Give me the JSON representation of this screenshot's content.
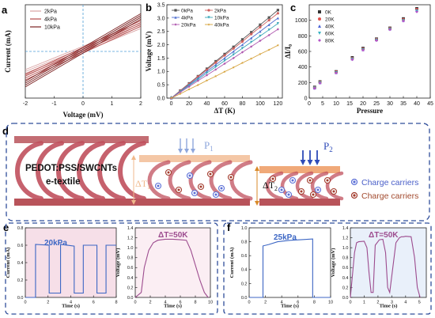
{
  "panels": {
    "a": {
      "letter": "a"
    },
    "b": {
      "letter": "b"
    },
    "c": {
      "letter": "c"
    },
    "d": {
      "letter": "d"
    },
    "e": {
      "letter": "e"
    },
    "f": {
      "letter": "f"
    }
  },
  "diagram_d": {
    "material_label_line1": "PEDOT:PSS/SWCNTs",
    "material_label_line2": "e-textile",
    "pressure1": "P",
    "pressure1_sub": "1",
    "pressure2": "P",
    "pressure2_sub": "2",
    "delta_t1": "ΔT",
    "delta_t1_sub": "1",
    "delta_t2": "ΔT",
    "delta_t2_sub": "2",
    "legend_charge_carriers_blue": "Charge carriers",
    "legend_charge_carriers_red": "Charge carriers",
    "colors": {
      "blue_carrier": "#5b6fd6",
      "red_carrier": "#a23b2c",
      "arch": "#c0505d",
      "plate_bottom": "#b8535a",
      "plate_top_light": "#f4c7a6",
      "arrow_light": "#8ea6dc",
      "arrow_dark": "#2e4bb8"
    }
  },
  "chart_data": [
    {
      "panel": "a",
      "type": "line",
      "xlabel": "Voltage (mV)",
      "ylabel": "Current (mA)",
      "xlim": [
        -2,
        2
      ],
      "xticks": [
        "-2",
        "-1",
        "0",
        "1",
        "2"
      ],
      "yticks": [],
      "series": [
        {
          "name": "2kPa",
          "color": "#d9a2a2",
          "x": [
            -2,
            2
          ],
          "y": [
            -0.45,
            0.55
          ]
        },
        {
          "name": "4kPa",
          "color": "#b44a4a",
          "x": [
            -2,
            2
          ],
          "y": [
            -0.55,
            0.6
          ]
        },
        {
          "name": "10kPa",
          "color": "#7a2020",
          "x": [
            -2,
            2
          ],
          "y": [
            -0.7,
            0.75
          ]
        }
      ]
    },
    {
      "panel": "b",
      "type": "line",
      "xlabel": "ΔT (K)",
      "ylabel": "Voltage (mV)",
      "xlim": [
        -5,
        125
      ],
      "ylim": [
        0,
        3.5
      ],
      "xticks": [
        0,
        20,
        40,
        60,
        80,
        100,
        120
      ],
      "yticks": [
        "0.0",
        "0.5",
        "1.0",
        "1.5",
        "2.0",
        "2.5",
        "3.0",
        "3.5"
      ],
      "x": [
        0,
        10,
        20,
        30,
        40,
        50,
        60,
        70,
        80,
        90,
        100,
        110,
        120
      ],
      "series": [
        {
          "name": "0kPa",
          "color": "#555555",
          "marker": "square",
          "y": [
            0,
            0.28,
            0.55,
            0.82,
            1.1,
            1.38,
            1.65,
            1.92,
            2.2,
            2.47,
            2.75,
            3.02,
            3.3
          ]
        },
        {
          "name": "2kPa",
          "color": "#d0605e",
          "marker": "circle",
          "y": [
            0,
            0.27,
            0.53,
            0.8,
            1.06,
            1.33,
            1.6,
            1.86,
            2.12,
            2.4,
            2.66,
            2.92,
            3.18
          ]
        },
        {
          "name": "4kPa",
          "color": "#4f6fd0",
          "marker": "triangle",
          "y": [
            0,
            0.25,
            0.5,
            0.75,
            1.0,
            1.25,
            1.5,
            1.75,
            2.0,
            2.25,
            2.5,
            2.75,
            3.0
          ]
        },
        {
          "name": "10kPa",
          "color": "#3aa6b8",
          "marker": "triangle-down",
          "y": [
            0,
            0.24,
            0.47,
            0.7,
            0.94,
            1.17,
            1.4,
            1.63,
            1.87,
            2.1,
            2.33,
            2.56,
            2.8
          ]
        },
        {
          "name": "20kPa",
          "color": "#b05ab0",
          "marker": "diamond",
          "y": [
            0,
            0.22,
            0.43,
            0.65,
            0.86,
            1.07,
            1.29,
            1.5,
            1.72,
            1.93,
            2.15,
            2.36,
            2.58
          ]
        },
        {
          "name": "40kPa",
          "color": "#d6a23a",
          "marker": "star",
          "y": [
            0,
            0.16,
            0.33,
            0.49,
            0.66,
            0.82,
            0.99,
            1.15,
            1.32,
            1.48,
            1.65,
            1.81,
            1.98
          ]
        }
      ]
    },
    {
      "panel": "c",
      "type": "scatter",
      "xlabel": "Pressure",
      "ylabel": "ΔI/I₀",
      "xlim": [
        0,
        45
      ],
      "ylim": [
        0,
        1200
      ],
      "xticks": [
        0,
        5,
        10,
        15,
        20,
        25,
        30,
        35,
        40,
        45
      ],
      "yticks": [
        0,
        200,
        400,
        600,
        800,
        1000
      ],
      "x": [
        2,
        4,
        10,
        16,
        20,
        25,
        30,
        35,
        40
      ],
      "series": [
        {
          "name": "0K",
          "color": "#333333",
          "marker": "square",
          "y": [
            140,
            210,
            340,
            520,
            640,
            760,
            900,
            1020,
            1150
          ]
        },
        {
          "name": "20K",
          "color": "#e0504c",
          "marker": "circle",
          "y": [
            135,
            205,
            335,
            510,
            630,
            755,
            895,
            1010,
            1140
          ]
        },
        {
          "name": "40K",
          "color": "#4a63d6",
          "marker": "triangle",
          "y": [
            130,
            200,
            330,
            505,
            625,
            750,
            890,
            1000,
            1130
          ]
        },
        {
          "name": "60K",
          "color": "#3ab2c2",
          "marker": "triangle-down",
          "y": [
            128,
            196,
            326,
            500,
            620,
            745,
            885,
            995,
            1120
          ]
        },
        {
          "name": "80K",
          "color": "#b555c8",
          "marker": "diamond",
          "y": [
            125,
            192,
            322,
            495,
            615,
            740,
            880,
            990,
            1110
          ]
        }
      ]
    },
    {
      "panel": "e-current",
      "type": "line",
      "annotation": "20kPa",
      "xlabel": "Time (s)",
      "ylabel": "Current (mA)",
      "xlim": [
        0,
        8
      ],
      "ylim": [
        0,
        0.8
      ],
      "xticks": [
        0,
        2,
        4,
        6,
        8
      ],
      "yticks": [
        "0.0",
        "0.2",
        "0.4",
        "0.6",
        "0.8"
      ],
      "series": [
        {
          "name": "",
          "color": "#3c66c4",
          "x": [
            0,
            0.9,
            0.9,
            2.1,
            2.1,
            3.1,
            3.1,
            4.3,
            4.3,
            5.1,
            5.1,
            6.3,
            6.3,
            7.1,
            7.1,
            8.0
          ],
          "y": [
            0,
            0,
            0.61,
            0.6,
            0.05,
            0.05,
            0.61,
            0.59,
            0.05,
            0.05,
            0.6,
            0.6,
            0.05,
            0.05,
            0.6,
            0.6
          ]
        }
      ]
    },
    {
      "panel": "e-voltage",
      "type": "line",
      "annotation": "ΔT=50K",
      "xlabel": "Time (s)",
      "ylabel": "Voltage (mV)",
      "xlim": [
        0,
        10
      ],
      "ylim": [
        0,
        1.4
      ],
      "xticks": [
        0,
        2,
        4,
        6,
        8,
        10
      ],
      "yticks": [
        "0.0",
        "0.2",
        "0.4",
        "0.6",
        "0.8",
        "1.0",
        "1.2",
        "1.4"
      ],
      "series": [
        {
          "name": "",
          "color": "#9c4b8e",
          "x": [
            0,
            0.8,
            1.2,
            1.8,
            2.4,
            3.0,
            4.0,
            5.0,
            6.0,
            6.8,
            7.4,
            8.0,
            8.6,
            9.2,
            9.7
          ],
          "y": [
            0,
            0.1,
            0.6,
            0.95,
            1.1,
            1.15,
            1.17,
            1.17,
            1.16,
            1.15,
            0.95,
            0.65,
            0.35,
            0.1,
            0
          ]
        }
      ]
    },
    {
      "panel": "f-current",
      "type": "line",
      "annotation": "25kPa",
      "xlabel": "Time (s)",
      "ylabel": "Current (mA)",
      "xlim": [
        0,
        10
      ],
      "ylim": [
        0,
        1.0
      ],
      "xticks": [
        0,
        2,
        4,
        6,
        8,
        10
      ],
      "yticks": [
        "0.0",
        "0.2",
        "0.4",
        "0.6",
        "0.8",
        "1.0"
      ],
      "series": [
        {
          "name": "",
          "color": "#3c66c4",
          "x": [
            0,
            1.7,
            1.7,
            2.4,
            3.5,
            5.0,
            6.5,
            7.8,
            7.8,
            10
          ],
          "y": [
            0,
            0,
            0.74,
            0.76,
            0.8,
            0.82,
            0.83,
            0.84,
            0,
            0
          ]
        }
      ]
    },
    {
      "panel": "f-voltage",
      "type": "line",
      "annotation": "ΔT=50K",
      "xlabel": "Time (s)",
      "ylabel": "Voltage (mV)",
      "xlim": [
        0,
        5.5
      ],
      "ylim": [
        0,
        1.4
      ],
      "xticks": [
        0,
        1,
        2,
        3,
        4,
        5
      ],
      "yticks": [
        "0.0",
        "0.2",
        "0.4",
        "0.6",
        "0.8",
        "1.0",
        "1.2",
        "1.4"
      ],
      "series": [
        {
          "name": "",
          "color": "#9c4b8e",
          "x": [
            0,
            0.3,
            0.45,
            0.6,
            1.0,
            1.2,
            1.35,
            1.5,
            1.65,
            1.8,
            2.1,
            2.35,
            2.55,
            2.7,
            2.85,
            3.3,
            3.55,
            3.7,
            3.85,
            4.0,
            4.4,
            4.65,
            4.85,
            5.05
          ],
          "y": [
            0,
            0.9,
            1.1,
            1.12,
            1.13,
            1.0,
            0.5,
            0.1,
            0.1,
            1.05,
            1.16,
            1.17,
            0.9,
            0.2,
            0.1,
            1.1,
            1.2,
            1.22,
            1.22,
            1.23,
            1.22,
            0.8,
            0.2,
            0
          ]
        }
      ]
    }
  ]
}
